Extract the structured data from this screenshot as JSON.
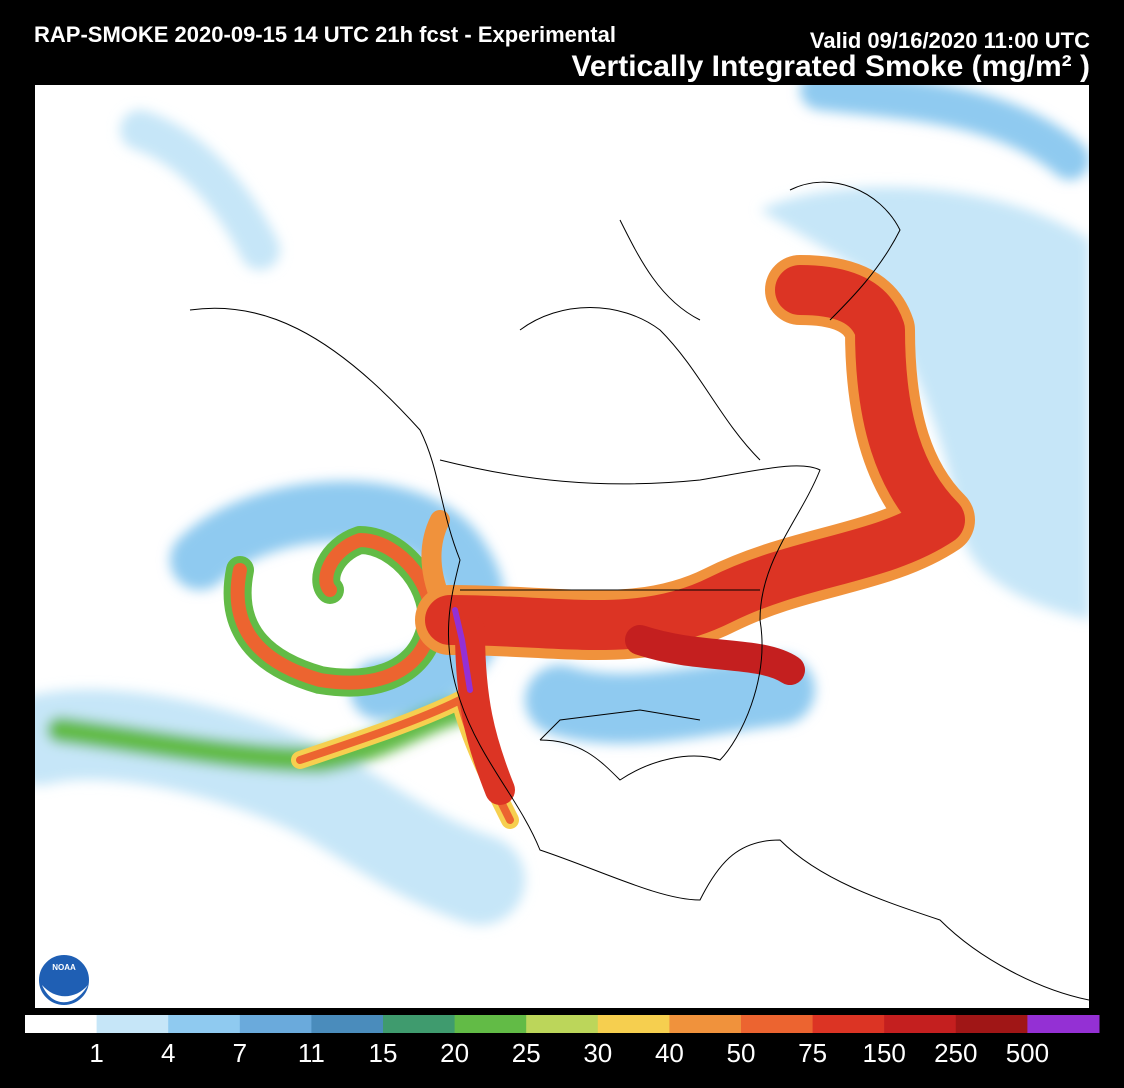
{
  "header": {
    "title": "RAP-SMOKE 2020-09-15 14 UTC 21h fcst - Experimental",
    "valid": "Valid 09/16/2020 11:00 UTC",
    "product": "Vertically Integrated Smoke (mg/m² )"
  },
  "logo": {
    "text": "NOAA"
  },
  "legend": {
    "colors": [
      "#ffffff",
      "#c6e6f8",
      "#8fcaf0",
      "#6aaadc",
      "#4a8cbc",
      "#3f9b6e",
      "#62bb46",
      "#bcd65a",
      "#f6cf4f",
      "#f0923c",
      "#ec6430",
      "#dc3424",
      "#c41f1f",
      "#a01616",
      "#9430d4"
    ],
    "labels": [
      "1",
      "4",
      "7",
      "11",
      "15",
      "20",
      "25",
      "30",
      "40",
      "50",
      "75",
      "150",
      "250",
      "500"
    ]
  }
}
